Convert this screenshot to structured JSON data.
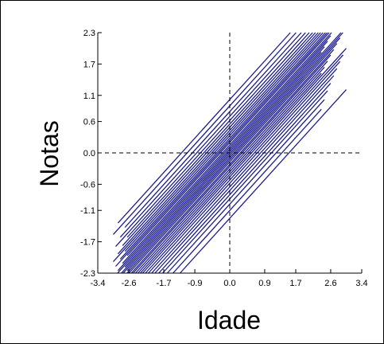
{
  "chart_data": {
    "type": "line",
    "xlabel": "Idade",
    "ylabel": "Notas",
    "xlim": [
      -3.4,
      3.4
    ],
    "ylim": [
      -2.3,
      2.3
    ],
    "xticks": [
      "-3.4",
      "-2.6",
      "-1.7",
      "-0.9",
      "0.0",
      "0.9",
      "1.7",
      "2.6",
      "3.4"
    ],
    "yticks": [
      "2.3",
      "1.7",
      "1.1",
      "0.6",
      "0.0",
      "-0.6",
      "-1.1",
      "-1.7",
      "-2.3"
    ],
    "reference_lines": {
      "x": 0.0,
      "y": 0.0,
      "style": "dashed"
    },
    "line_color": "#1a1a8c",
    "slope": 0.82,
    "segments_x": [
      -3.0,
      3.0
    ],
    "intercepts": [
      -1.25,
      -1.1,
      -0.98,
      -0.88,
      -0.8,
      -0.72,
      -0.65,
      -0.58,
      -0.52,
      -0.46,
      -0.41,
      -0.36,
      -0.31,
      -0.26,
      -0.22,
      -0.17,
      -0.13,
      -0.09,
      -0.05,
      -0.01,
      0.03,
      0.07,
      0.11,
      0.15,
      0.2,
      0.24,
      0.28,
      0.33,
      0.38,
      0.43,
      0.49,
      0.55,
      0.62,
      0.7,
      0.79,
      0.9,
      1.02
    ]
  }
}
